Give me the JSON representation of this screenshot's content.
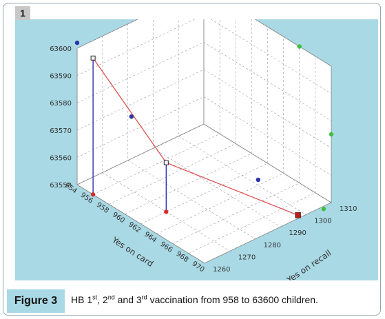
{
  "panel_label": "1",
  "caption": {
    "label": "Figure 3",
    "prefix": "HB 1",
    "sup1": "st",
    "mid1": ", 2",
    "sup2": "nd",
    "mid2": " and 3",
    "sup3": "rd",
    "suffix": " vaccination from 958 to 63600 children."
  },
  "colors": {
    "background": "#a9d9e5",
    "floor": "#ffffff",
    "line": "#e05050",
    "drop": "#3030b0",
    "series_blue": "#2b36a8",
    "series_green": "#3fbf3f",
    "series_red": "#d62d2d"
  },
  "chart_data": {
    "type": "scatter3d",
    "xlabel": "Yes on card",
    "ylabel": "Yes on recall",
    "zlabel": "",
    "xlim": [
      954,
      970
    ],
    "ylim": [
      1260,
      1310
    ],
    "zlim": [
      63550,
      63600
    ],
    "x_ticks": [
      954,
      956,
      958,
      960,
      962,
      964,
      966,
      968,
      970
    ],
    "y_ticks": [
      1260,
      1270,
      1280,
      1290,
      1300,
      1310
    ],
    "z_ticks": [
      63550,
      63560,
      63570,
      63580,
      63590,
      63600
    ],
    "grid": true,
    "points": [
      {
        "x": 954,
        "y": 1260,
        "z": 63602,
        "color": "blue",
        "label": ""
      },
      {
        "x": 957,
        "y": 1272,
        "z": 63575,
        "color": "blue",
        "label": ""
      },
      {
        "x": 964,
        "y": 1300,
        "z": 63552,
        "color": "blue",
        "label": ""
      },
      {
        "x": 966,
        "y": 1310,
        "z": 63600,
        "color": "green",
        "label": ""
      },
      {
        "x": 970,
        "y": 1310,
        "z": 63575,
        "color": "green",
        "label": ""
      },
      {
        "x": 970,
        "y": 1307,
        "z": 63549,
        "color": "green",
        "label": ""
      }
    ],
    "line": [
      {
        "x": 956,
        "y": 1260,
        "z": 63600
      },
      {
        "x": 962,
        "y": 1270,
        "z": 63568
      },
      {
        "x": 969,
        "y": 1300,
        "z": 63548
      }
    ],
    "drop_lines": [
      {
        "x": 956,
        "y": 1260,
        "z": 63600
      },
      {
        "x": 962,
        "y": 1270,
        "z": 63568
      }
    ]
  }
}
